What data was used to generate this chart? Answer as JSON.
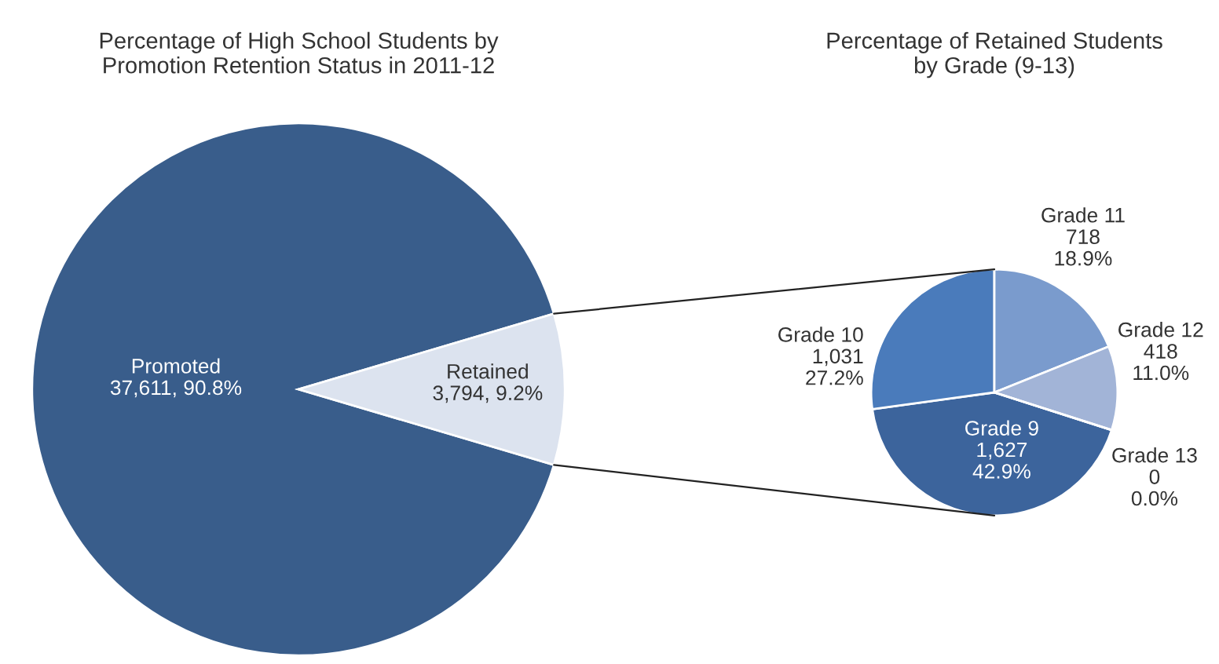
{
  "chart_data": [
    {
      "type": "pie",
      "title": "Percentage of High School Students by\nPromotion Retention Status in 2011-12",
      "categories": [
        "Promoted",
        "Retained"
      ],
      "values": [
        37611,
        3794
      ],
      "colors": [
        "#395d8b",
        "#dce3ef"
      ],
      "value_labels": [
        "37,611, 90.8%",
        "3,794, 9.2%"
      ]
    },
    {
      "type": "pie",
      "title": "Percentage of Retained Students\nby Grade (9-13)",
      "categories": [
        "Grade 9",
        "Grade 10",
        "Grade 11",
        "Grade 12",
        "Grade 13"
      ],
      "values": [
        1627,
        1031,
        718,
        418,
        0
      ],
      "colors": [
        "#3c649c",
        "#4a7bbb",
        "#7a9bcd",
        "#a2b4d7",
        "#c0cce3"
      ],
      "value_labels": [
        "1,627\n42.9%",
        "1,031\n27.2%",
        "718\n18.9%",
        "418\n11.0%",
        "0\n0.0%"
      ]
    }
  ]
}
